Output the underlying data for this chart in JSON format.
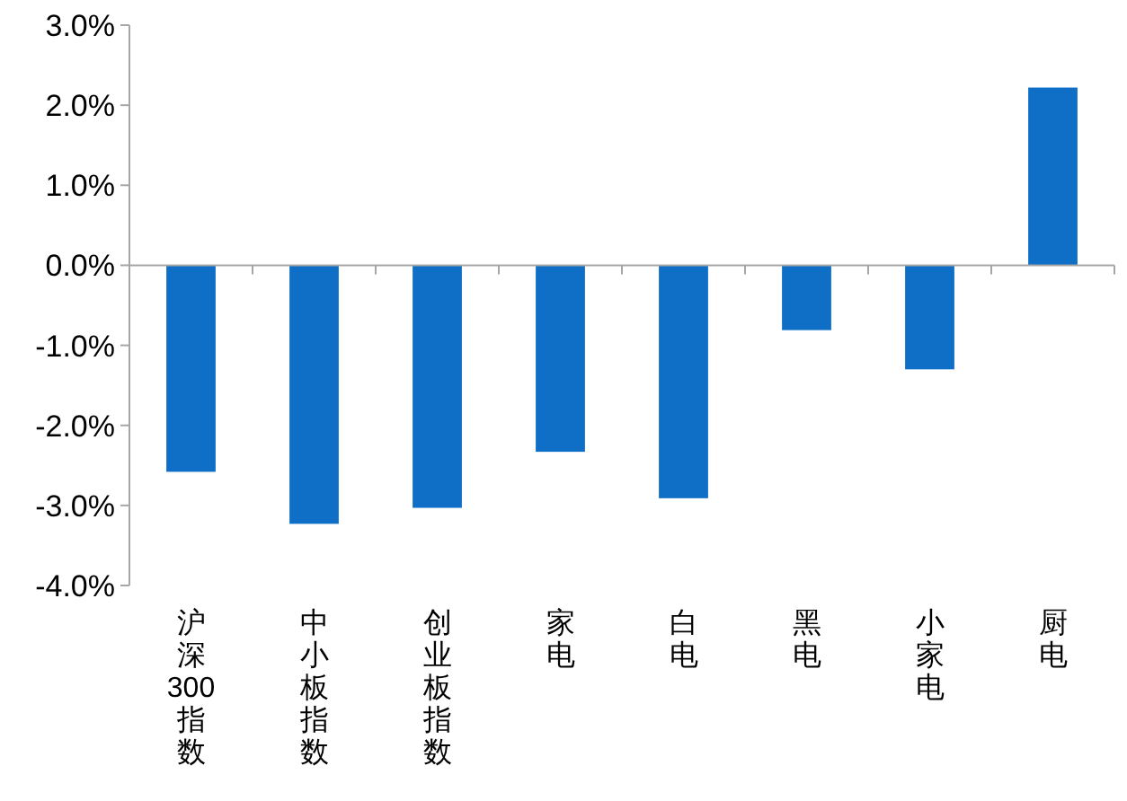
{
  "chart_data": {
    "type": "bar",
    "categories": [
      "沪深300指数",
      "中小板指数",
      "创业板指数",
      "家电",
      "白电",
      "黑电",
      "小家电",
      "厨电"
    ],
    "values": [
      -2.58,
      -3.23,
      -3.03,
      -2.33,
      -2.91,
      -0.81,
      -1.3,
      2.22
    ],
    "color": "#0f6fc6",
    "ylim": [
      -4,
      3
    ],
    "yticks": [
      {
        "value": 3,
        "label": "3.0%"
      },
      {
        "value": 2,
        "label": "2.0%"
      },
      {
        "value": 1,
        "label": "1.0%"
      },
      {
        "value": 0,
        "label": "0.0%"
      },
      {
        "value": -1,
        "label": "-1.0%"
      },
      {
        "value": -2,
        "label": "-2.0%"
      },
      {
        "value": -3,
        "label": "-3.0%"
      },
      {
        "value": -4,
        "label": "-4.0%"
      }
    ],
    "line_style": "solid"
  }
}
